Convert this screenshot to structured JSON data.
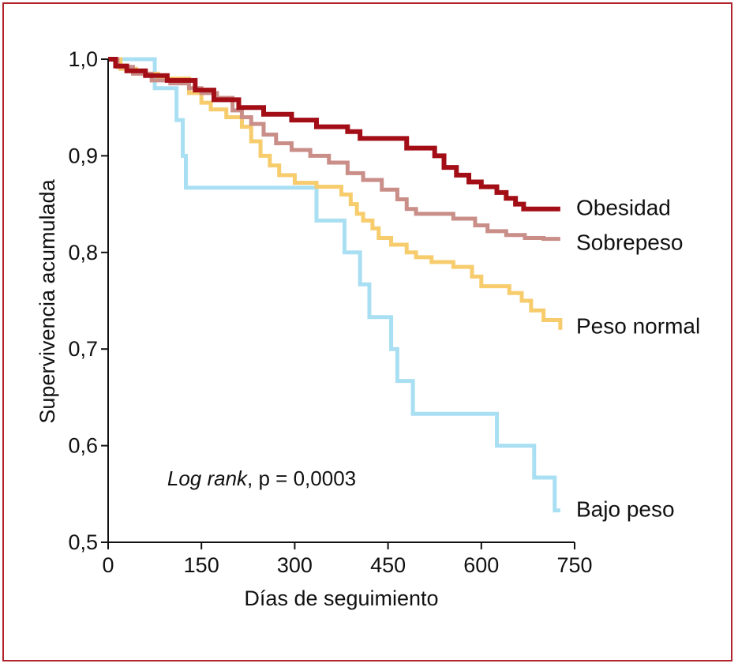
{
  "chart_data": {
    "type": "line",
    "xlabel": "Días de seguimiento",
    "ylabel": "Supervivencia acumulada",
    "xlim": [
      0,
      750
    ],
    "ylim": [
      0.5,
      1.0
    ],
    "x_ticks": [
      0,
      150,
      300,
      450,
      600,
      750
    ],
    "x_tick_labels": [
      "0",
      "150",
      "300",
      "450",
      "600",
      "750"
    ],
    "y_ticks": [
      0.5,
      0.6,
      0.7,
      0.8,
      0.9,
      1.0
    ],
    "y_tick_labels": [
      "0,5",
      "0,6",
      "0,7",
      "0,8",
      "0,9",
      "1,0"
    ],
    "grid": false,
    "annotation": {
      "italic": "Log rank",
      "rest": ", p = 0,0003",
      "x": 95,
      "y": 0.566
    },
    "series": [
      {
        "name": "Obesidad",
        "color": "#a30d16",
        "x": [
          0,
          12,
          30,
          60,
          95,
          140,
          170,
          210,
          250,
          295,
          335,
          385,
          405,
          480,
          525,
          540,
          560,
          580,
          600,
          625,
          640,
          655,
          668,
          690,
          727
        ],
        "y": [
          1.0,
          0.993,
          0.988,
          0.983,
          0.978,
          0.968,
          0.958,
          0.95,
          0.943,
          0.937,
          0.93,
          0.925,
          0.918,
          0.908,
          0.9,
          0.888,
          0.88,
          0.873,
          0.868,
          0.862,
          0.856,
          0.85,
          0.845,
          0.845,
          0.845
        ]
      },
      {
        "name": "Sobrepeso",
        "color": "#c98e88",
        "x": [
          0,
          15,
          40,
          70,
          100,
          130,
          150,
          175,
          200,
          215,
          230,
          250,
          270,
          295,
          325,
          355,
          385,
          410,
          440,
          465,
          480,
          495,
          510,
          555,
          590,
          610,
          640,
          670,
          700,
          727
        ],
        "y": [
          1.0,
          0.992,
          0.985,
          0.978,
          0.975,
          0.97,
          0.965,
          0.96,
          0.947,
          0.94,
          0.933,
          0.922,
          0.913,
          0.906,
          0.9,
          0.893,
          0.882,
          0.875,
          0.865,
          0.855,
          0.845,
          0.84,
          0.84,
          0.835,
          0.828,
          0.822,
          0.818,
          0.815,
          0.814,
          0.814
        ]
      },
      {
        "name": "Peso normal",
        "color": "#f7cc6c",
        "x": [
          0,
          20,
          45,
          80,
          130,
          150,
          165,
          190,
          215,
          230,
          245,
          260,
          275,
          300,
          335,
          375,
          390,
          400,
          410,
          425,
          435,
          455,
          480,
          495,
          520,
          555,
          585,
          600,
          645,
          665,
          680,
          700,
          727
        ],
        "y": [
          1.0,
          0.99,
          0.985,
          0.98,
          0.965,
          0.955,
          0.948,
          0.94,
          0.93,
          0.915,
          0.9,
          0.89,
          0.88,
          0.872,
          0.868,
          0.86,
          0.85,
          0.84,
          0.833,
          0.825,
          0.815,
          0.808,
          0.8,
          0.795,
          0.79,
          0.785,
          0.775,
          0.765,
          0.758,
          0.75,
          0.74,
          0.73,
          0.72
        ]
      },
      {
        "name": "Bajo peso",
        "color": "#a9dff2",
        "x": [
          0,
          60,
          75,
          100,
          110,
          120,
          125,
          300,
          335,
          380,
          405,
          420,
          455,
          465,
          490,
          625,
          685,
          718,
          727
        ],
        "y": [
          1.0,
          1.0,
          0.97,
          0.97,
          0.937,
          0.9,
          0.867,
          0.867,
          0.833,
          0.8,
          0.767,
          0.733,
          0.7,
          0.667,
          0.633,
          0.6,
          0.567,
          0.533,
          0.533
        ]
      }
    ]
  }
}
